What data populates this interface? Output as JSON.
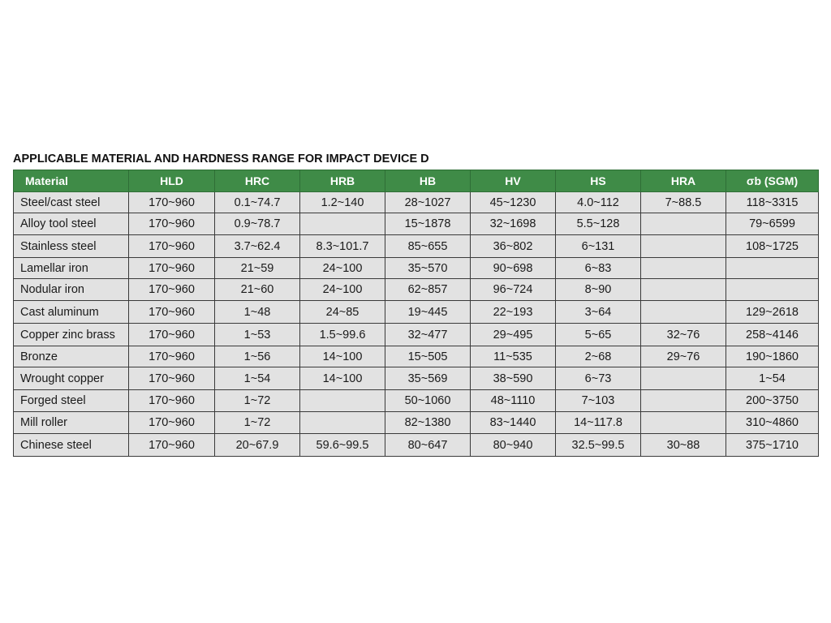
{
  "title": "APPLICABLE MATERIAL AND HARDNESS RANGE FOR IMPACT DEVICE D",
  "colors": {
    "header_bg": "#3f8b47",
    "header_text": "#ffffff",
    "cell_bg": "#e2e2e2"
  },
  "table": {
    "headers": [
      "Material",
      "HLD",
      "HRC",
      "HRB",
      "HB",
      "HV",
      "HS",
      "HRA",
      "σb (SGM)"
    ],
    "rows": [
      [
        "Steel/cast steel",
        "170~960",
        "0.1~74.7",
        "1.2~140",
        "28~1027",
        "45~1230",
        "4.0~112",
        "7~88.5",
        "118~3315"
      ],
      [
        "Alloy tool steel",
        "170~960",
        "0.9~78.7",
        "",
        "15~1878",
        "32~1698",
        "5.5~128",
        "",
        "79~6599"
      ],
      [
        "Stainless steel",
        "170~960",
        "3.7~62.4",
        "8.3~101.7",
        "85~655",
        "36~802",
        "6~131",
        "",
        "108~1725"
      ],
      [
        "Lamellar iron",
        "170~960",
        "21~59",
        "24~100",
        "35~570",
        "90~698",
        "6~83",
        "",
        ""
      ],
      [
        "Nodular iron",
        "170~960",
        "21~60",
        "24~100",
        "62~857",
        "96~724",
        "8~90",
        "",
        ""
      ],
      [
        "Cast aluminum",
        "170~960",
        "1~48",
        "24~85",
        "19~445",
        "22~193",
        "3~64",
        "",
        "129~2618"
      ],
      [
        "Copper zinc brass",
        "170~960",
        "1~53",
        "1.5~99.6",
        "32~477",
        "29~495",
        "5~65",
        "32~76",
        "258~4146"
      ],
      [
        "Bronze",
        "170~960",
        "1~56",
        "14~100",
        "15~505",
        "11~535",
        "2~68",
        "29~76",
        "190~1860"
      ],
      [
        "Wrought copper",
        "170~960",
        "1~54",
        "14~100",
        "35~569",
        "38~590",
        "6~73",
        "",
        "1~54"
      ],
      [
        "Forged steel",
        "170~960",
        "1~72",
        "",
        "50~1060",
        "48~1110",
        "7~103",
        "",
        "200~3750"
      ],
      [
        "Mill roller",
        "170~960",
        "1~72",
        "",
        "82~1380",
        "83~1440",
        "14~117.8",
        "",
        "310~4860"
      ],
      [
        "Chinese steel",
        "170~960",
        "20~67.9",
        "59.6~99.5",
        "80~647",
        "80~940",
        "32.5~99.5",
        "30~88",
        "375~1710"
      ]
    ]
  }
}
